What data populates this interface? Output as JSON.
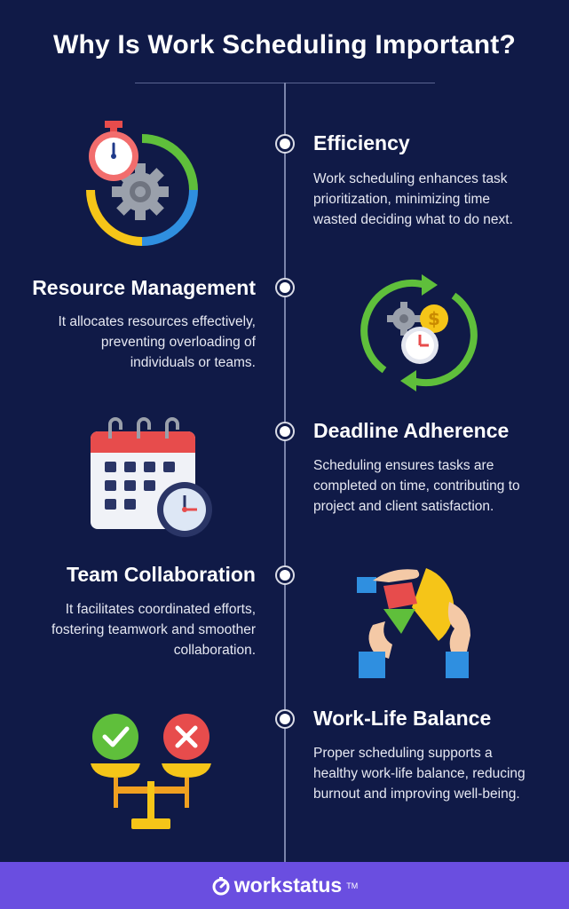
{
  "title": "Why Is Work Scheduling Important?",
  "sections": [
    {
      "heading": "Efficiency",
      "lines": [
        "Work scheduling enhances task",
        "prioritization, minimizing time",
        "wasted deciding what to do next."
      ],
      "icon": "stopwatch-gear-icon"
    },
    {
      "heading": "Resource Management",
      "lines": [
        "It allocates resources effectively,",
        "preventing overloading of",
        "individuals or teams."
      ],
      "icon": "resource-cycle-icon"
    },
    {
      "heading": "Deadline Adherence",
      "lines": [
        "Scheduling ensures tasks are",
        "completed on time, contributing to",
        "project and client satisfaction."
      ],
      "icon": "calendar-clock-icon"
    },
    {
      "heading": "Team Collaboration",
      "lines": [
        "It facilitates coordinated efforts,",
        "fostering teamwork and smoother",
        "collaboration."
      ],
      "icon": "hands-puzzle-icon"
    },
    {
      "heading": "Work-Life Balance",
      "lines": [
        "Proper scheduling supports a",
        "healthy work-life balance, reducing",
        "burnout and improving well-being."
      ],
      "icon": "balance-scale-icon"
    }
  ],
  "footer": {
    "brand": "workstatus",
    "trademark": "TM"
  },
  "colors": {
    "background": "#101a47",
    "footer": "#6a4ee0",
    "green": "#5fbf3b",
    "red": "#e74c4c",
    "yellow": "#f5c518",
    "blue": "#2f8fe0"
  }
}
